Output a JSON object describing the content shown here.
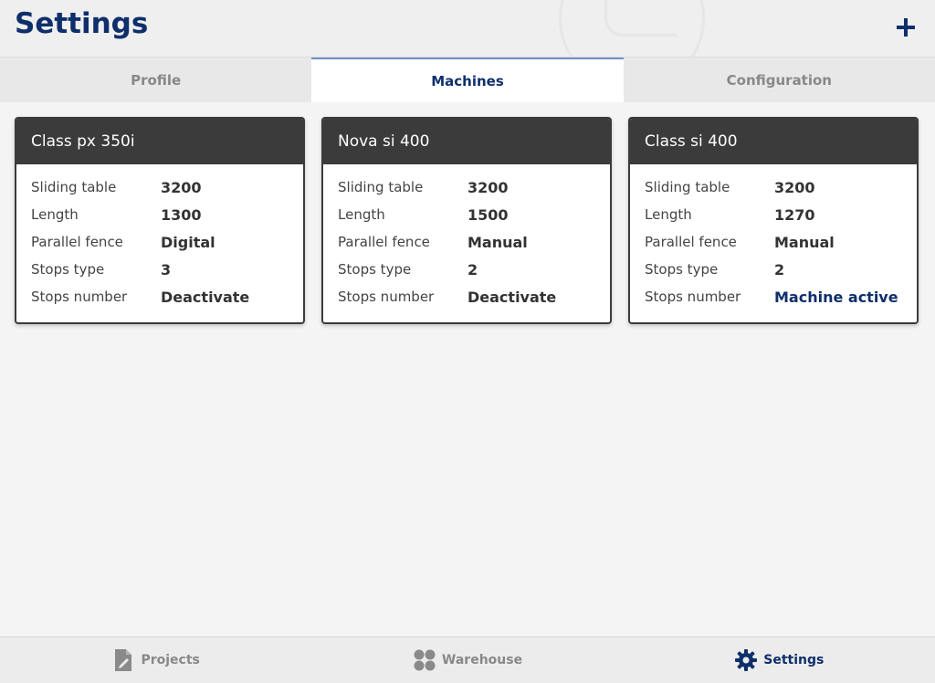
{
  "header": {
    "title": "Settings",
    "add_icon": "plus-icon"
  },
  "tabs": [
    {
      "label": "Profile",
      "active": false
    },
    {
      "label": "Machines",
      "active": true
    },
    {
      "label": "Configuration",
      "active": false
    }
  ],
  "machines": [
    {
      "name": "Class px 350i",
      "rows": [
        {
          "label": "Sliding table",
          "value": "3200"
        },
        {
          "label": "Length",
          "value": "1300"
        },
        {
          "label": "Parallel fence",
          "value": "Digital"
        },
        {
          "label": "Stops type",
          "value": "3"
        },
        {
          "label": "Stops number",
          "value": "Deactivate"
        }
      ]
    },
    {
      "name": "Nova si 400",
      "rows": [
        {
          "label": "Sliding table",
          "value": "3200"
        },
        {
          "label": "Length",
          "value": "1500"
        },
        {
          "label": "Parallel fence",
          "value": "Manual"
        },
        {
          "label": "Stops type",
          "value": "2"
        },
        {
          "label": "Stops number",
          "value": "Deactivate"
        }
      ]
    },
    {
      "name": "Class si 400",
      "rows": [
        {
          "label": "Sliding table",
          "value": "3200"
        },
        {
          "label": "Length",
          "value": "1270"
        },
        {
          "label": "Parallel fence",
          "value": "Manual"
        },
        {
          "label": "Stops type",
          "value": "2"
        },
        {
          "label": "Stops number",
          "value": "Machine active"
        }
      ]
    }
  ],
  "bottom_nav": [
    {
      "label": "Projects",
      "icon": "document-edit-icon",
      "active": false
    },
    {
      "label": "Warehouse",
      "icon": "grid-dots-icon",
      "active": false
    },
    {
      "label": "Settings",
      "icon": "gear-icon",
      "active": true
    }
  ],
  "colors": {
    "brand": "#0f2f6b",
    "card_header": "#3b3b3b",
    "inactive": "#888888"
  }
}
